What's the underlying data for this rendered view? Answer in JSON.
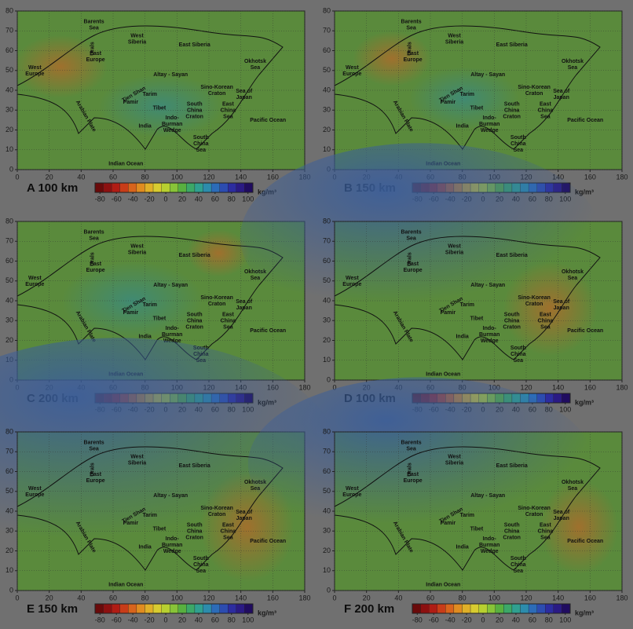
{
  "figure": {
    "xlim": [
      0,
      180
    ],
    "xticks": [
      0,
      20,
      40,
      60,
      80,
      100,
      120,
      140,
      160,
      180
    ],
    "ylim": [
      0,
      80
    ],
    "yticks": [
      0,
      10,
      20,
      30,
      40,
      50,
      60,
      70,
      80
    ],
    "colorbar": {
      "lim": [
        -86,
        106
      ],
      "ticks": [
        -80,
        -60,
        -40,
        -20,
        0,
        20,
        40,
        60,
        80,
        100
      ],
      "unit": "kg/m³"
    },
    "regions": [
      {
        "lines": [
          "Barents",
          "Sea"
        ],
        "lon": 48,
        "lat": 73
      },
      {
        "lines": [
          "East",
          "Europe"
        ],
        "lon": 49,
        "lat": 57
      },
      {
        "lines": [
          "West",
          "Europe"
        ],
        "lon": 11,
        "lat": 50
      },
      {
        "lines": [
          "Urals"
        ],
        "lon": 47,
        "lat": 61
      },
      {
        "lines": [
          "West",
          "Siberia"
        ],
        "lon": 75,
        "lat": 66
      },
      {
        "lines": [
          "East Siberia"
        ],
        "lon": 111,
        "lat": 63
      },
      {
        "lines": [
          "Okhotsk",
          "Sea"
        ],
        "lon": 149,
        "lat": 53
      },
      {
        "lines": [
          "Altay - Sayan"
        ],
        "lon": 96,
        "lat": 48
      },
      {
        "lines": [
          "Tien Shan"
        ],
        "lon": 73,
        "lat": 38
      },
      {
        "lines": [
          "Tarim"
        ],
        "lon": 83,
        "lat": 38
      },
      {
        "lines": [
          "Pamir"
        ],
        "lon": 71,
        "lat": 34
      },
      {
        "lines": [
          "Tibet"
        ],
        "lon": 89,
        "lat": 31
      },
      {
        "lines": [
          "Sino-Korean",
          "Craton"
        ],
        "lon": 125,
        "lat": 40
      },
      {
        "lines": [
          "Sea of",
          "Japan"
        ],
        "lon": 142,
        "lat": 38
      },
      {
        "lines": [
          "South",
          "China",
          "Craton"
        ],
        "lon": 111,
        "lat": 30
      },
      {
        "lines": [
          "East",
          "China",
          "Sea"
        ],
        "lon": 132,
        "lat": 30
      },
      {
        "lines": [
          "India"
        ],
        "lon": 80,
        "lat": 22
      },
      {
        "lines": [
          "Indo-",
          "Burman",
          "Wedge"
        ],
        "lon": 97,
        "lat": 23
      },
      {
        "lines": [
          "Arabian Plate"
        ],
        "lon": 43,
        "lat": 27
      },
      {
        "lines": [
          "Pacific Ocean"
        ],
        "lon": 157,
        "lat": 25
      },
      {
        "lines": [
          "South",
          "China",
          "Sea"
        ],
        "lon": 115,
        "lat": 13
      },
      {
        "lines": [
          "Indian Ocean"
        ],
        "lon": 68,
        "lat": 3
      }
    ],
    "panels": [
      {
        "letter": "A",
        "depth": "100 km"
      },
      {
        "letter": "B",
        "depth": "150 km"
      },
      {
        "letter": "C",
        "depth": "200 km"
      },
      {
        "letter": "D",
        "depth": "100 km"
      },
      {
        "letter": "E",
        "depth": "150 km"
      },
      {
        "letter": "F",
        "depth": "200 km"
      }
    ]
  }
}
